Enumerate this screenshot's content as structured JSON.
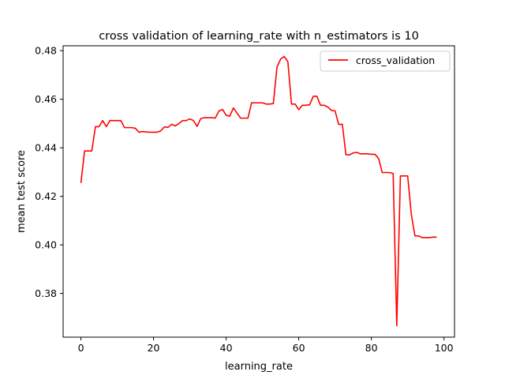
{
  "chart_data": {
    "type": "line",
    "title": "cross validation of learning_rate with n_estimators is 10",
    "xlabel": "learning_rate",
    "ylabel": "mean test score",
    "xlim": [
      -4.9,
      102.9
    ],
    "ylim": [
      0.362,
      0.482
    ],
    "x_ticks": [
      0,
      20,
      40,
      60,
      80,
      100
    ],
    "x_tick_labels": [
      "0",
      "20",
      "40",
      "60",
      "80",
      "100"
    ],
    "y_ticks": [
      0.38,
      0.4,
      0.42,
      0.44,
      0.46,
      0.48
    ],
    "y_tick_labels": [
      "0.38",
      "0.40",
      "0.42",
      "0.44",
      "0.46",
      "0.48"
    ],
    "grid": false,
    "legend": {
      "position": "top-right",
      "entries": [
        "cross_validation"
      ]
    },
    "series": [
      {
        "name": "cross_validation",
        "color": "#ff0000",
        "x": [
          0,
          1,
          2,
          3,
          4,
          5,
          6,
          7,
          8,
          9,
          10,
          11,
          12,
          13,
          14,
          15,
          16,
          17,
          18,
          19,
          20,
          21,
          22,
          23,
          24,
          25,
          26,
          27,
          28,
          29,
          30,
          31,
          32,
          33,
          34,
          35,
          36,
          37,
          38,
          39,
          40,
          41,
          42,
          43,
          44,
          45,
          46,
          47,
          48,
          49,
          50,
          51,
          52,
          53,
          54,
          55,
          56,
          57,
          58,
          59,
          60,
          61,
          62,
          63,
          64,
          65,
          66,
          67,
          68,
          69,
          70,
          71,
          72,
          73,
          74,
          75,
          76,
          77,
          78,
          79,
          80,
          81,
          82,
          83,
          84,
          85,
          86,
          87,
          88,
          89,
          90,
          91,
          92,
          93,
          94,
          95,
          96,
          97,
          98
        ],
        "values": [
          0.4255,
          0.4387,
          0.4387,
          0.4387,
          0.4487,
          0.4487,
          0.4512,
          0.4487,
          0.4512,
          0.4512,
          0.4512,
          0.4512,
          0.4483,
          0.4483,
          0.4483,
          0.448,
          0.4464,
          0.4467,
          0.4465,
          0.4464,
          0.4464,
          0.4464,
          0.447,
          0.4486,
          0.4484,
          0.4497,
          0.449,
          0.45,
          0.4512,
          0.4512,
          0.4519,
          0.4512,
          0.4488,
          0.452,
          0.4524,
          0.4524,
          0.4524,
          0.4522,
          0.4551,
          0.4558,
          0.4534,
          0.453,
          0.4564,
          0.4543,
          0.4522,
          0.4522,
          0.4522,
          0.4585,
          0.4585,
          0.4585,
          0.4585,
          0.458,
          0.458,
          0.4582,
          0.4732,
          0.4765,
          0.4776,
          0.4755,
          0.458,
          0.458,
          0.4557,
          0.4575,
          0.4575,
          0.4577,
          0.4612,
          0.4612,
          0.4575,
          0.4575,
          0.4568,
          0.4554,
          0.4552,
          0.4496,
          0.4497,
          0.4371,
          0.4371,
          0.4379,
          0.4381,
          0.4375,
          0.4375,
          0.4375,
          0.4373,
          0.4373,
          0.4356,
          0.4298,
          0.4298,
          0.4298,
          0.4294,
          0.3667,
          0.4284,
          0.4284,
          0.4284,
          0.4126,
          0.4037,
          0.4037,
          0.403,
          0.403,
          0.403,
          0.4032,
          0.4032
        ]
      }
    ]
  }
}
